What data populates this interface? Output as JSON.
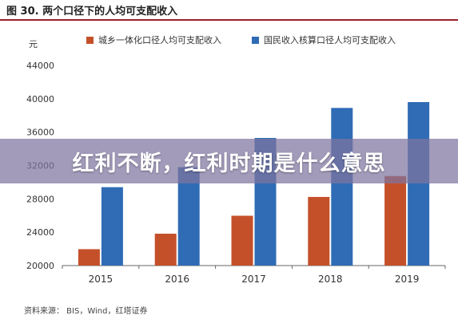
{
  "figure": {
    "title": "图 30. 两个口径下的人均可支配收入",
    "unit": "元",
    "source": "资料来源： BIS，Wind，红塔证券"
  },
  "overlay": {
    "text": "红利不断，红利时期是什么意思"
  },
  "colors": {
    "series_urban_rural": "#c4502a",
    "series_national": "#2f6cb5",
    "axis": "#666666",
    "header_rule": "#9a1f2a"
  },
  "chart_data": {
    "type": "bar",
    "title": "两个口径下的人均可支配收入",
    "xlabel": "",
    "ylabel": "元",
    "categories": [
      "2015",
      "2016",
      "2017",
      "2018",
      "2019"
    ],
    "series": [
      {
        "name": "城乡一体化口径人均可支配收入",
        "values": [
          21966,
          23821,
          25974,
          28228,
          30733
        ]
      },
      {
        "name": "国民收入核算口径人均可支配收入",
        "values": [
          29400,
          31800,
          35300,
          38900,
          39600
        ]
      }
    ],
    "ylim": [
      20000,
      44000
    ],
    "yticks": [
      "20000",
      "24000",
      "28000",
      "32000",
      "36000",
      "40000",
      "44000"
    ],
    "grid": false,
    "legend": "top"
  }
}
